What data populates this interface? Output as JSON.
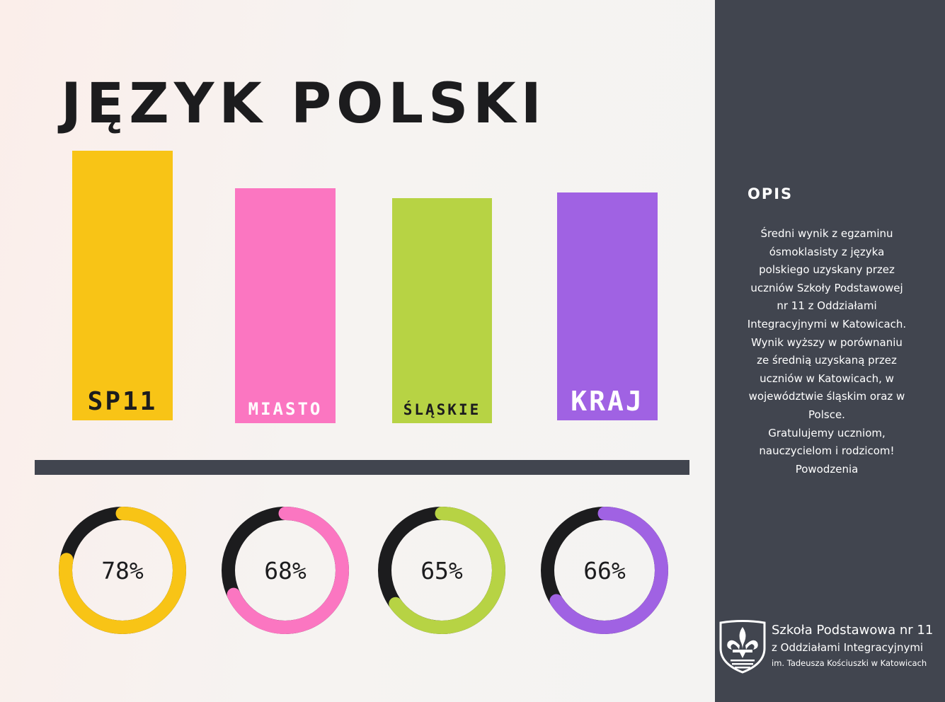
{
  "title": "JĘZYK POLSKI",
  "colors": {
    "sp11": "#f8c416",
    "miasto": "#fb76c1",
    "slaskie": "#b7d344",
    "kraj": "#a062e3",
    "donut_track": "#1c1c1e",
    "dark_panel": "#41454f"
  },
  "chart_data": [
    {
      "type": "bar",
      "categories": [
        "SP11",
        "MIASTO",
        "ŚLĄSKIE",
        "KRAJ"
      ],
      "values": [
        78,
        68,
        65,
        66
      ],
      "title": "JĘZYK POLSKI",
      "xlabel": "",
      "ylabel": "",
      "grid": false
    },
    {
      "type": "pie",
      "style": "donut",
      "values": [
        78,
        68,
        65,
        66
      ],
      "labels": [
        "78%",
        "68%",
        "65%",
        "66%"
      ]
    }
  ],
  "sidebar": {
    "title": "OPIS",
    "text": "Średni wynik z egzaminu ósmoklasisty z języka polskiego uzyskany  przez uczniów Szkoły Podstawowej nr 11 z Oddziałami Integracyjnymi w Katowicach. Wynik wyższy w porównaniu ze średnią uzyskaną przez uczniów w Katowicach, w województwie śląskim oraz w Polsce.\nGratulujemy uczniom, nauczycielom i rodzicom!\nPowodzenia"
  },
  "logo": {
    "line1": "Szkoła Podstawowa nr 11",
    "line2": "z Oddziałami Integracyjnymi",
    "line3": "im. Tadeusza Kościuszki w Katowicach",
    "icon": "fleur-de-lis-shield-icon"
  }
}
